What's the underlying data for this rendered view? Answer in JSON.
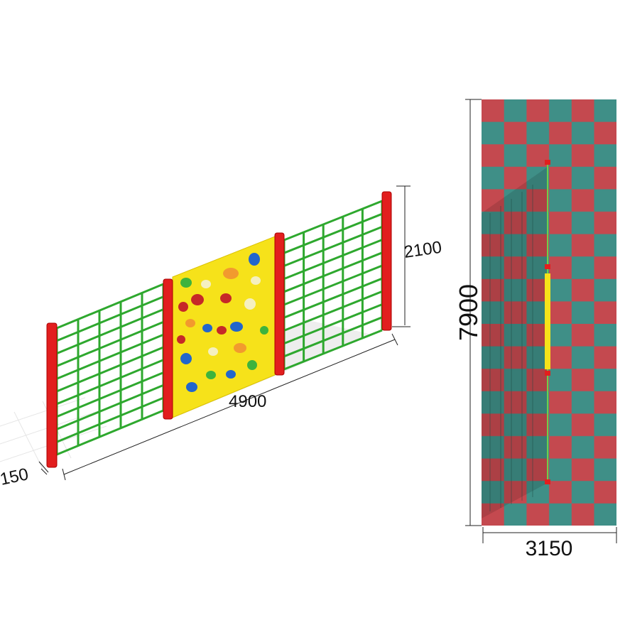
{
  "dimensions": {
    "height": "2100",
    "length": "4900",
    "depth": "150",
    "area_length": "7900",
    "area_width": "3150"
  }
}
